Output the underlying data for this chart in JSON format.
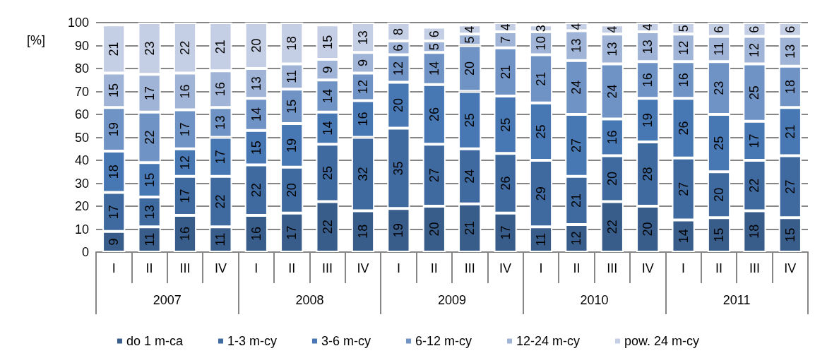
{
  "chart_data": {
    "type": "bar",
    "stacked": true,
    "ylabel": "[%]",
    "categories": [
      "I",
      "II",
      "III",
      "IV",
      "I",
      "II",
      "III",
      "IV",
      "I",
      "II",
      "III",
      "IV",
      "I",
      "II",
      "III",
      "IV",
      "I",
      "II",
      "III",
      "IV"
    ],
    "annotations": [
      "2007",
      "2008",
      "2009",
      "2010",
      "2011"
    ],
    "series": [
      {
        "name": "do 1 m-ca",
        "color": "#385d8a",
        "values": [
          9,
          11,
          16,
          11,
          16,
          17,
          22,
          18,
          19,
          20,
          21,
          17,
          11,
          12,
          22,
          20,
          14,
          15,
          18,
          15
        ],
        "value_labels": [
          "9",
          "11",
          "16",
          "11",
          "16",
          "17",
          "22",
          "18",
          "19",
          "20",
          "21",
          "17",
          "11",
          "12",
          "22",
          "20",
          "14",
          "15",
          "18",
          "15"
        ]
      },
      {
        "name": "1-3 m-cy",
        "color": "#3f6aa0",
        "values": [
          17,
          13,
          17,
          22,
          22,
          20,
          25,
          32,
          35,
          27,
          24,
          26,
          29,
          21,
          20,
          28,
          27,
          20,
          22,
          27
        ],
        "value_labels": [
          "17",
          "13",
          "17",
          "22",
          "22",
          "20",
          "25",
          "32",
          "35",
          "27",
          "24",
          "26",
          "29",
          "21",
          "20",
          "28",
          "27",
          "20",
          "22",
          "27"
        ]
      },
      {
        "name": "3-6 m-cy",
        "color": "#4878b4",
        "values": [
          18,
          15,
          12,
          17,
          15,
          19,
          14,
          16,
          20,
          26,
          25,
          25,
          25,
          27,
          16,
          19,
          26,
          25,
          17,
          21
        ],
        "value_labels": [
          "18",
          "15",
          "12",
          "17",
          "15",
          "19",
          "14",
          "16",
          "20",
          "26",
          "25",
          "25",
          "25",
          "27",
          "16",
          "19",
          "26",
          "25",
          "17",
          "21"
        ]
      },
      {
        "name": "6-12 m-cy",
        "color": "#7093c5",
        "values": [
          19,
          22,
          17,
          13,
          14,
          15,
          14,
          12,
          12,
          14,
          20,
          21,
          21,
          23.5,
          24,
          16,
          16,
          23,
          25,
          18
        ],
        "value_labels": [
          "19",
          "22",
          "17",
          "13",
          "14",
          "15",
          "14",
          "12",
          "12",
          "14",
          "20",
          "21",
          "21",
          "24",
          "24",
          "16",
          "16",
          "23",
          "25",
          "18"
        ]
      },
      {
        "name": "12-24 m-cy",
        "color": "#a0b4d7",
        "values": [
          15,
          16.5,
          16,
          16,
          13,
          11,
          9,
          9,
          6,
          5,
          5,
          7,
          10,
          13,
          13,
          13,
          12,
          11,
          12,
          13
        ],
        "value_labels": [
          "15",
          "17",
          "16",
          "16",
          "13",
          "11",
          "9",
          "9",
          "6",
          "5",
          "5",
          "7",
          "10",
          "13",
          "13",
          "13",
          "12",
          "11",
          "12",
          "13"
        ]
      },
      {
        "name": "pow. 24 m-cy",
        "color": "#c4cee4",
        "values": [
          21,
          22.5,
          22,
          21,
          20,
          18,
          15,
          13,
          8,
          6,
          4,
          4,
          3,
          3.5,
          4,
          4,
          5,
          6,
          6,
          6
        ],
        "value_labels": [
          "21",
          "23",
          "22",
          "21",
          "20",
          "18",
          "15",
          "13",
          "8",
          "6",
          "4",
          "4",
          "3",
          "4",
          "4",
          "4",
          "5",
          "6",
          "6",
          "6"
        ]
      }
    ],
    "ylim": [
      0,
      100
    ],
    "yticks": [
      0,
      10,
      20,
      30,
      40,
      50,
      60,
      70,
      80,
      90,
      100
    ],
    "grid": "y",
    "legend": "bottom"
  }
}
